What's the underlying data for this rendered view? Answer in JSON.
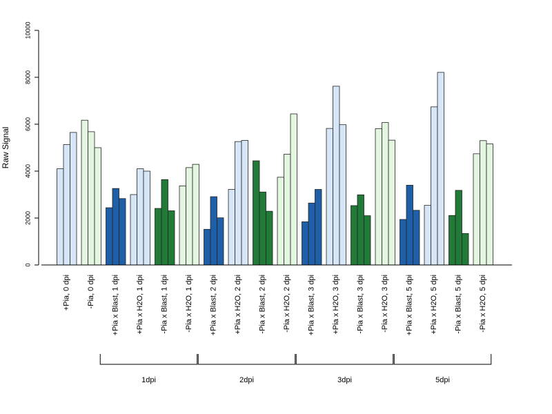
{
  "chart_data": {
    "type": "bar",
    "ylabel": "Raw Signal",
    "ylim": [
      0,
      10000
    ],
    "yticks": [
      0,
      2000,
      4000,
      6000,
      8000,
      10000
    ],
    "grid": false,
    "categories": [
      "+Pia, 0 dpi",
      "-Pia, 0 dpi",
      "+Pia x Blast, 1 dpi",
      "+Pia x H2O, 1 dpi",
      "-Pia x Blast, 1 dpi",
      "-Pia x H2O, 1 dpi",
      "+Pia x Blast, 2 dpi",
      "+Pia x H2O, 2 dpi",
      "-Pia x Blast, 2 dpi",
      "-Pia x H2O, 2 dpi",
      "+Pia x Blast, 3 dpi",
      "+Pia x H2O, 3 dpi",
      "-Pia x Blast, 3 dpi",
      "-Pia x H2O, 3 dpi",
      "+Pia x Blast, 5 dpi",
      "+Pia x H2O, 5 dpi",
      "-Pia x Blast, 5 dpi",
      "-Pia x H2O, 5 dpi"
    ],
    "values": [
      [
        4100,
        5130,
        5650
      ],
      [
        6170,
        5680,
        5000
      ],
      [
        2440,
        3260,
        2830
      ],
      [
        3000,
        4100,
        4000
      ],
      [
        2410,
        3640,
        2310
      ],
      [
        3370,
        4150,
        4290
      ],
      [
        1520,
        2910,
        2010
      ],
      [
        3220,
        5260,
        5310
      ],
      [
        4440,
        3110,
        2290
      ],
      [
        3740,
        4720,
        6440
      ],
      [
        1840,
        2640,
        3220
      ],
      [
        5820,
        7620,
        5980
      ],
      [
        2530,
        2990,
        2100
      ],
      [
        5810,
        6070,
        5320
      ],
      [
        1940,
        3400,
        2330
      ],
      [
        2540,
        6740,
        8210
      ],
      [
        2110,
        3180,
        1340
      ],
      [
        4740,
        5300,
        5160
      ]
    ],
    "bar_colors": [
      "#d6e6f7",
      "#e3f6df",
      "#1f5fa8",
      "#d6e6f7",
      "#217a37",
      "#e3f6df",
      "#1f5fa8",
      "#d6e6f7",
      "#217a37",
      "#e3f6df",
      "#1f5fa8",
      "#d6e6f7",
      "#217a37",
      "#e3f6df",
      "#1f5fa8",
      "#d6e6f7",
      "#217a37",
      "#e3f6df"
    ],
    "groups": [
      {
        "label": "1dpi",
        "from": 2,
        "to": 5
      },
      {
        "label": "2dpi",
        "from": 6,
        "to": 9
      },
      {
        "label": "3dpi",
        "from": 10,
        "to": 13
      },
      {
        "label": "5dpi",
        "from": 14,
        "to": 17
      }
    ]
  }
}
